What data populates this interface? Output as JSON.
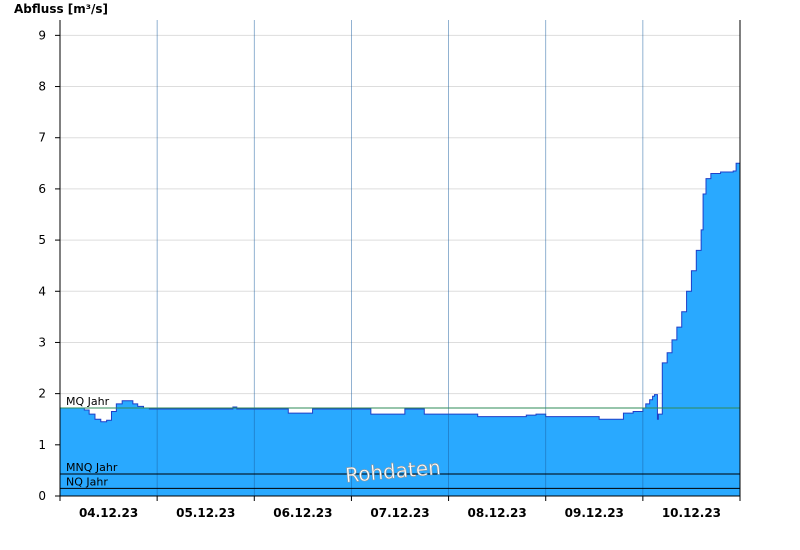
{
  "chart_data": {
    "type": "area",
    "ylabel": "Abfluss [m³/s]",
    "ylim": [
      0,
      9.3
    ],
    "yticks": [
      0,
      1,
      2,
      3,
      4,
      5,
      6,
      7,
      8,
      9
    ],
    "xlim": [
      0,
      7
    ],
    "xticks": [
      {
        "label": "04.12.23",
        "pos": 0.5
      },
      {
        "label": "05.12.23",
        "pos": 1.5
      },
      {
        "label": "06.12.23",
        "pos": 2.5
      },
      {
        "label": "07.12.23",
        "pos": 3.5
      },
      {
        "label": "08.12.23",
        "pos": 4.5
      },
      {
        "label": "09.12.23",
        "pos": 5.5
      },
      {
        "label": "10.12.23",
        "pos": 6.5
      }
    ],
    "day_boundaries": [
      1,
      2,
      3,
      4,
      5,
      6
    ],
    "reference_lines": [
      {
        "label": "MQ Jahr",
        "value": 1.72,
        "color": "#2e8b57"
      },
      {
        "label": "MNQ Jahr",
        "value": 0.43,
        "color": "#000000"
      },
      {
        "label": "NQ Jahr",
        "value": 0.15,
        "color": "#000000"
      }
    ],
    "watermark": "Rohdaten",
    "colors": {
      "fill": "#29a9ff",
      "line": "#1f3fc8",
      "grid": "#dddddd"
    },
    "series": [
      {
        "x": [
          0,
          0.2,
          0.25,
          0.3,
          0.36,
          0.42,
          0.48,
          0.53,
          0.58,
          0.64,
          0.7,
          0.75,
          0.8,
          0.86,
          0.92,
          1.0,
          1.3,
          1.6,
          1.75,
          1.78,
          1.82,
          1.9,
          2.2,
          2.35,
          2.55,
          2.6,
          3.0,
          3.2,
          3.5,
          3.55,
          3.7,
          3.75,
          4.0,
          4.2,
          4.3,
          4.5,
          4.7,
          4.8,
          4.9,
          5.0,
          5.5,
          5.55,
          5.8,
          5.9,
          6.0,
          6.03,
          6.07,
          6.1,
          6.12,
          6.15,
          6.16,
          6.2,
          6.25,
          6.3,
          6.35,
          6.4,
          6.45,
          6.5,
          6.55,
          6.6,
          6.62,
          6.65,
          6.7,
          6.8,
          6.93,
          6.96,
          7.0
        ],
        "y": [
          1.72,
          1.72,
          1.68,
          1.6,
          1.5,
          1.45,
          1.48,
          1.65,
          1.8,
          1.86,
          1.86,
          1.8,
          1.75,
          1.72,
          1.7,
          1.7,
          1.7,
          1.7,
          1.7,
          1.74,
          1.7,
          1.7,
          1.7,
          1.62,
          1.62,
          1.7,
          1.7,
          1.6,
          1.6,
          1.7,
          1.7,
          1.6,
          1.6,
          1.6,
          1.55,
          1.55,
          1.55,
          1.58,
          1.6,
          1.55,
          1.55,
          1.5,
          1.62,
          1.65,
          1.72,
          1.8,
          1.88,
          1.95,
          1.98,
          1.5,
          1.6,
          2.6,
          2.8,
          3.05,
          3.3,
          3.6,
          4.0,
          4.4,
          4.8,
          5.2,
          5.9,
          6.2,
          6.3,
          6.33,
          6.35,
          6.5,
          6.62
        ]
      }
    ]
  }
}
